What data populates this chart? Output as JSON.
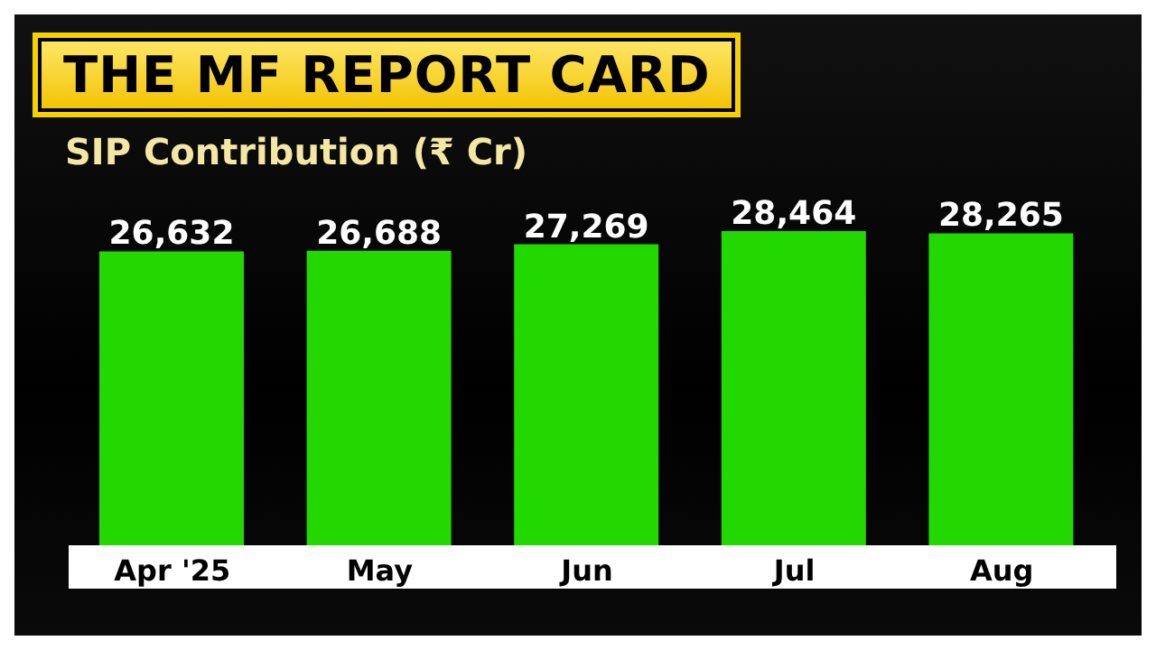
{
  "chart_data": {
    "type": "bar",
    "title": "THE MF REPORT CARD",
    "subtitle": "SIP Contribution (₹ Cr)",
    "categories": [
      "Apr '25",
      "May",
      "Jun",
      "Jul",
      "Aug"
    ],
    "values": [
      26632,
      26688,
      27269,
      28464,
      28265
    ],
    "value_labels": [
      "26,632",
      "26,688",
      "27,269",
      "28,464",
      "28,265"
    ],
    "color": "#22d800",
    "tick_labels": "x",
    "grid": false,
    "legend": false
  }
}
